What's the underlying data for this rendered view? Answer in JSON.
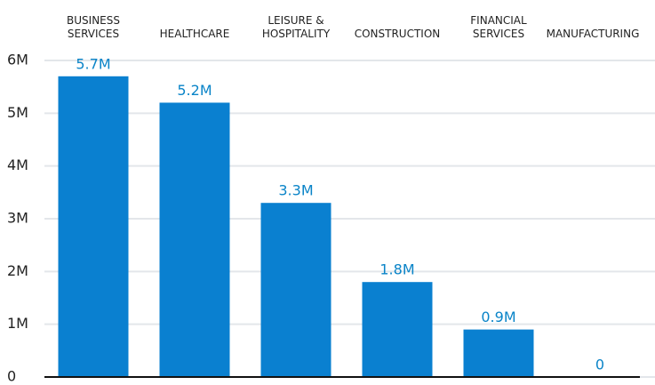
{
  "chart_data": {
    "type": "bar",
    "categories": [
      "BUSINESS\nSERVICES",
      "HEALTHCARE",
      "LEISURE &\nHOSPITALITY",
      "CONSTRUCTION",
      "FINANCIAL\nSERVICES",
      "MANUFACTURING"
    ],
    "values": [
      5700000,
      5200000,
      3300000,
      1800000,
      900000,
      0
    ],
    "value_labels": [
      "5.7M",
      "5.2M",
      "3.3M",
      "1.8M",
      "0.9M",
      "0"
    ],
    "color": "#0a80d0",
    "ylim": [
      0,
      6000000
    ],
    "yticks": [
      0,
      {
        "value": 1000000,
        "label": "1M"
      },
      {
        "value": 2000000,
        "label": "2M"
      },
      {
        "value": 3000000,
        "label": "3M"
      },
      {
        "value": 4000000,
        "label": "4M"
      },
      {
        "value": 5000000,
        "label": "5M"
      },
      {
        "value": 6000000,
        "label": "6M"
      }
    ],
    "grid": true
  }
}
